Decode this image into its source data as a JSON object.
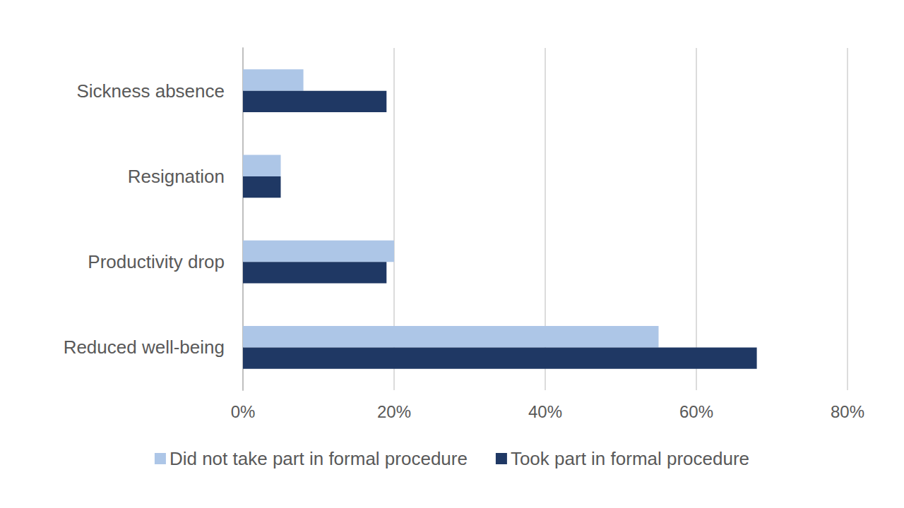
{
  "chart_data": {
    "type": "bar",
    "orientation": "horizontal",
    "categories": [
      "Sickness absence",
      "Resignation",
      "Productivity drop",
      "Reduced well-being"
    ],
    "series": [
      {
        "name": "Did not take part in formal procedure",
        "color": "#adc6e7",
        "values": [
          8,
          5,
          20,
          55
        ]
      },
      {
        "name": "Took part in formal procedure",
        "color": "#1f3864",
        "values": [
          19,
          5,
          19,
          68
        ]
      }
    ],
    "xlim": [
      0,
      80
    ],
    "xticks": [
      {
        "value": 0,
        "label": "0%"
      },
      {
        "value": 20,
        "label": "20%"
      },
      {
        "value": 40,
        "label": "40%"
      },
      {
        "value": 60,
        "label": "60%"
      },
      {
        "value": 80,
        "label": "80%"
      }
    ],
    "grid": true,
    "legend": "bottom"
  }
}
